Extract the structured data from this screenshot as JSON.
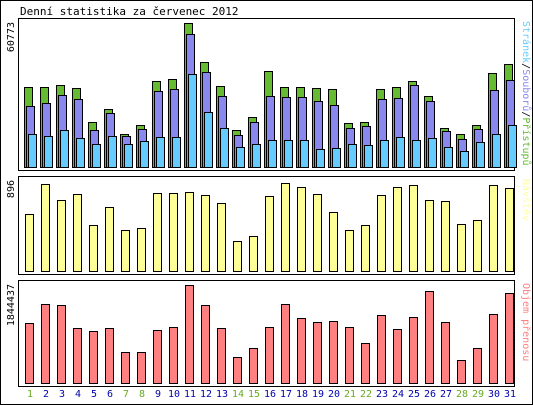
{
  "title": "Denní statistika za červenec 2012",
  "colors": {
    "pristupy": "#66bb33",
    "soubory": "#8888ee",
    "stranky": "#66ccff",
    "navstevy": "#ffff99",
    "objem": "#ff8080",
    "weekend_day": "#66aa22",
    "weekday": "#0000aa",
    "frame": "#000000",
    "panel_bg": "#ffffff"
  },
  "chart_data": [
    {
      "type": "bar",
      "panel": "pristupy-soubory-stranky",
      "categories": [
        "1",
        "2",
        "3",
        "4",
        "5",
        "6",
        "7",
        "8",
        "9",
        "10",
        "11",
        "12",
        "13",
        "14",
        "15",
        "16",
        "17",
        "18",
        "19",
        "20",
        "21",
        "22",
        "23",
        "24",
        "25",
        "26",
        "27",
        "28",
        "29",
        "30",
        "31"
      ],
      "y_max_label": "60773",
      "ylim": [
        0,
        60773
      ],
      "legend_parts": [
        "Stránek",
        "Souborů",
        "Přístupů"
      ],
      "legend_separator": "/",
      "series": [
        {
          "name": "Přístupů",
          "values": [
            33800,
            33800,
            34600,
            33300,
            18800,
            24300,
            14100,
            17600,
            36500,
            37000,
            60773,
            44300,
            34000,
            15700,
            21300,
            40700,
            33800,
            33800,
            33300,
            32900,
            18400,
            18800,
            32800,
            33800,
            36500,
            29800,
            16300,
            13800,
            17600,
            39800,
            43600
          ]
        },
        {
          "name": "Souborů",
          "values": [
            25800,
            27000,
            30400,
            28500,
            15700,
            22800,
            13100,
            15900,
            31900,
            33000,
            56200,
            40300,
            30000,
            13600,
            18800,
            30000,
            29600,
            29600,
            27800,
            26000,
            16300,
            17200,
            28800,
            29200,
            34500,
            27800,
            15100,
            11800,
            16100,
            32300,
            36700
          ]
        },
        {
          "name": "Stránek",
          "values": [
            14100,
            13100,
            15700,
            12200,
            9900,
            13100,
            9500,
            11000,
            12700,
            12700,
            39100,
            23400,
            16300,
            8300,
            9600,
            11400,
            11400,
            11400,
            7700,
            8100,
            9500,
            9100,
            11400,
            12700,
            11400,
            12200,
            8600,
            6800,
            10400,
            14000,
            17600
          ]
        }
      ]
    },
    {
      "type": "bar",
      "panel": "navstevy",
      "categories": [
        "1",
        "2",
        "3",
        "4",
        "5",
        "6",
        "7",
        "8",
        "9",
        "10",
        "11",
        "12",
        "13",
        "14",
        "15",
        "16",
        "17",
        "18",
        "19",
        "20",
        "21",
        "22",
        "23",
        "24",
        "25",
        "26",
        "27",
        "28",
        "29",
        "30",
        "31"
      ],
      "y_max_label": "896",
      "ylim": [
        0,
        896
      ],
      "legend_parts": [
        "Návštěv"
      ],
      "series": [
        {
          "name": "Návštěv",
          "values": [
            570,
            870,
            710,
            770,
            460,
            640,
            410,
            430,
            780,
            780,
            790,
            760,
            680,
            300,
            350,
            750,
            880,
            840,
            770,
            590,
            410,
            460,
            760,
            840,
            860,
            710,
            700,
            470,
            510,
            860,
            830
          ]
        }
      ]
    },
    {
      "type": "bar",
      "panel": "objem",
      "categories": [
        "1",
        "2",
        "3",
        "4",
        "5",
        "6",
        "7",
        "8",
        "9",
        "10",
        "11",
        "12",
        "13",
        "14",
        "15",
        "16",
        "17",
        "18",
        "19",
        "20",
        "21",
        "22",
        "23",
        "24",
        "25",
        "26",
        "27",
        "28",
        "29",
        "30",
        "31"
      ],
      "y_max_label": "1844437",
      "ylim": [
        0,
        1844437
      ],
      "legend_parts": [
        "Objem přenosu"
      ],
      "series": [
        {
          "name": "Objem přenosu",
          "values": [
            1120000,
            1480000,
            1460000,
            1040000,
            980000,
            1030000,
            590000,
            590000,
            990000,
            1050000,
            1844437,
            1470000,
            1040000,
            480000,
            660000,
            1050000,
            1480000,
            1220000,
            1150000,
            1170000,
            1050000,
            750000,
            1280000,
            1020000,
            1250000,
            1730000,
            1140000,
            440000,
            660000,
            1290000,
            1700000
          ]
        }
      ]
    }
  ],
  "x_axis": {
    "labels": [
      "1",
      "2",
      "3",
      "4",
      "5",
      "6",
      "7",
      "8",
      "9",
      "10",
      "11",
      "12",
      "13",
      "14",
      "15",
      "16",
      "17",
      "18",
      "19",
      "20",
      "21",
      "22",
      "23",
      "24",
      "25",
      "26",
      "27",
      "28",
      "29",
      "30",
      "31"
    ],
    "weekend_days": [
      "1",
      "7",
      "8",
      "14",
      "15",
      "21",
      "22",
      "28",
      "29"
    ]
  }
}
